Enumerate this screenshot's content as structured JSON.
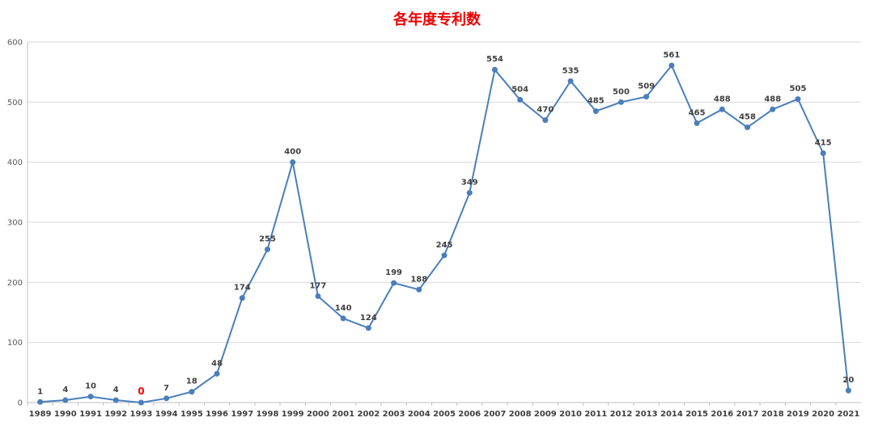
{
  "colors": {
    "title": "#ee0000",
    "line": "#4a7ebb",
    "marker": "#4a7ebb",
    "grid": "#d9d9d9",
    "axis": "#bfbfbf",
    "highlight_label": "#ff0000"
  },
  "chart_data": {
    "type": "line",
    "title": "各年度专利数",
    "xlabel": "",
    "ylabel": "",
    "ylim": [
      0,
      600
    ],
    "yticks": [
      0,
      100,
      200,
      300,
      400,
      500,
      600
    ],
    "grid": true,
    "legend": false,
    "categories": [
      "1989",
      "1990",
      "1991",
      "1992",
      "1993",
      "1994",
      "1995",
      "1996",
      "1997",
      "1998",
      "1999",
      "2000",
      "2001",
      "2002",
      "2003",
      "2004",
      "2005",
      "2006",
      "2007",
      "2008",
      "2009",
      "2010",
      "2011",
      "2012",
      "2013",
      "2014",
      "2015",
      "2016",
      "2017",
      "2018",
      "2019",
      "2020",
      "2021"
    ],
    "series": [
      {
        "values": [
          1,
          4,
          10,
          4,
          0,
          7,
          18,
          48,
          174,
          255,
          400,
          177,
          140,
          124,
          199,
          188,
          245,
          349,
          554,
          504,
          470,
          535,
          485,
          500,
          509,
          561,
          465,
          488,
          458,
          488,
          505,
          415,
          20
        ]
      }
    ],
    "highlighted_labels": [
      "1993"
    ]
  }
}
